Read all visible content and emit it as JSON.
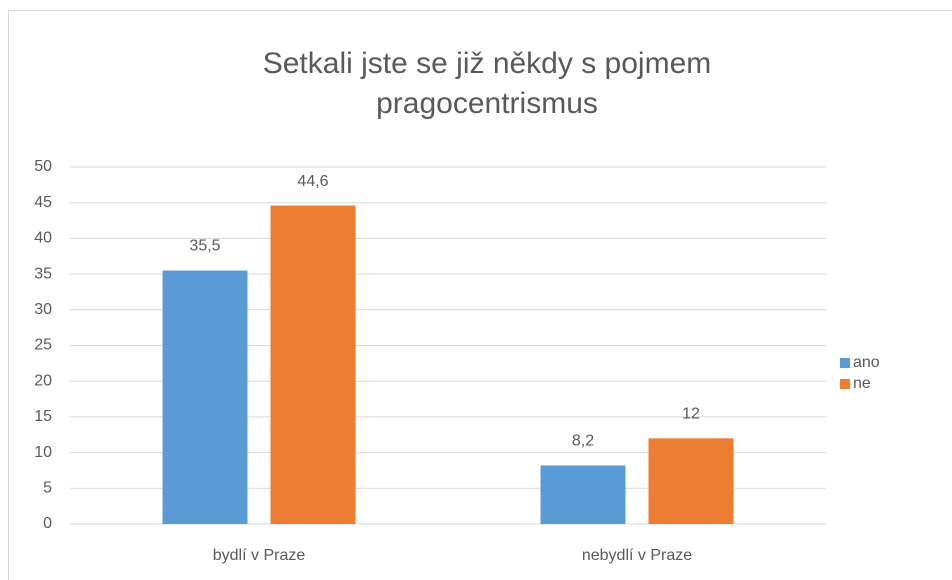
{
  "chart_data": {
    "type": "bar",
    "title": "Setkali jste se již někdy s pojmem pragocentrismus",
    "categories": [
      "bydlí v Praze",
      "nebydlí v Praze"
    ],
    "series": [
      {
        "name": "ano",
        "color": "#5b9bd5",
        "values": [
          35.5,
          8.2
        ],
        "value_labels": [
          "35,5",
          "8,2"
        ]
      },
      {
        "name": "ne",
        "color": "#ed7d31",
        "values": [
          44.6,
          12
        ],
        "value_labels": [
          "44,6",
          "12"
        ]
      }
    ],
    "ylim": [
      0,
      50
    ],
    "yticks": [
      0,
      5,
      10,
      15,
      20,
      25,
      30,
      35,
      40,
      45,
      50
    ],
    "grid": true,
    "legend": "right"
  }
}
